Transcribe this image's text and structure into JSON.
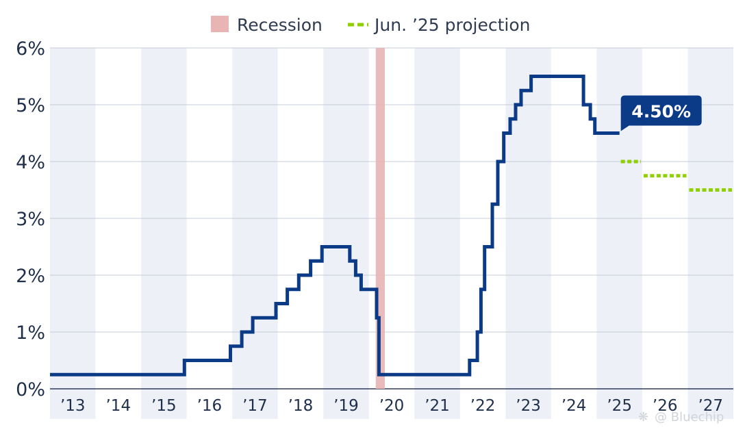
{
  "chart_data": {
    "type": "line",
    "legend": [
      {
        "label": "Recession",
        "color": "#e8b4b4",
        "marker": "block"
      },
      {
        "label": "Jun. ’25 projection",
        "color": "#8fd000",
        "marker": "dashes"
      }
    ],
    "legend_position": "top-center",
    "y_ticks": [
      "0%",
      "1%",
      "2%",
      "3%",
      "4%",
      "5%",
      "6%"
    ],
    "ylim": [
      0,
      6
    ],
    "x_ticks": [
      "’13",
      "’14",
      "’15",
      "’16",
      "’17",
      "’18",
      "’19",
      "’20",
      "’21",
      "’22",
      "’23",
      "’24",
      "’25",
      "’26",
      "’27"
    ],
    "xlim": [
      2013,
      2028
    ],
    "grid": true,
    "recession": {
      "start": 2020.15,
      "end": 2020.35
    },
    "series": [
      {
        "color": "#0b3a86",
        "style": "step",
        "points": [
          [
            2013.0,
            0.25
          ],
          [
            2015.95,
            0.5
          ],
          [
            2016.96,
            0.75
          ],
          [
            2017.21,
            1.0
          ],
          [
            2017.45,
            1.25
          ],
          [
            2017.96,
            1.5
          ],
          [
            2018.21,
            1.75
          ],
          [
            2018.46,
            2.0
          ],
          [
            2018.72,
            2.25
          ],
          [
            2018.97,
            2.5
          ],
          [
            2019.58,
            2.25
          ],
          [
            2019.71,
            2.0
          ],
          [
            2019.83,
            1.75
          ],
          [
            2020.17,
            1.25
          ],
          [
            2020.22,
            0.25
          ],
          [
            2022.21,
            0.5
          ],
          [
            2022.38,
            1.0
          ],
          [
            2022.46,
            1.75
          ],
          [
            2022.54,
            2.5
          ],
          [
            2022.71,
            3.25
          ],
          [
            2022.83,
            4.0
          ],
          [
            2022.96,
            4.5
          ],
          [
            2023.1,
            4.75
          ],
          [
            2023.22,
            5.0
          ],
          [
            2023.34,
            5.25
          ],
          [
            2023.56,
            5.5
          ],
          [
            2024.71,
            5.0
          ],
          [
            2024.86,
            4.75
          ],
          [
            2024.96,
            4.5
          ],
          [
            2025.5,
            4.5
          ]
        ]
      },
      {
        "name": "Jun. ’25 projection",
        "color": "#8fd000",
        "style": "dotted",
        "segments": [
          {
            "x": [
              2025.5,
              2026.0
            ],
            "y": 4.0
          },
          {
            "x": [
              2026.0,
              2027.0
            ],
            "y": 3.75
          },
          {
            "x": [
              2027.0,
              2028.0
            ],
            "y": 3.5
          }
        ]
      }
    ],
    "annotations": [
      {
        "text": "4.50%",
        "x": 2025.5,
        "y": 4.5
      }
    ]
  },
  "watermark": {
    "text": "@ Bluechip"
  }
}
